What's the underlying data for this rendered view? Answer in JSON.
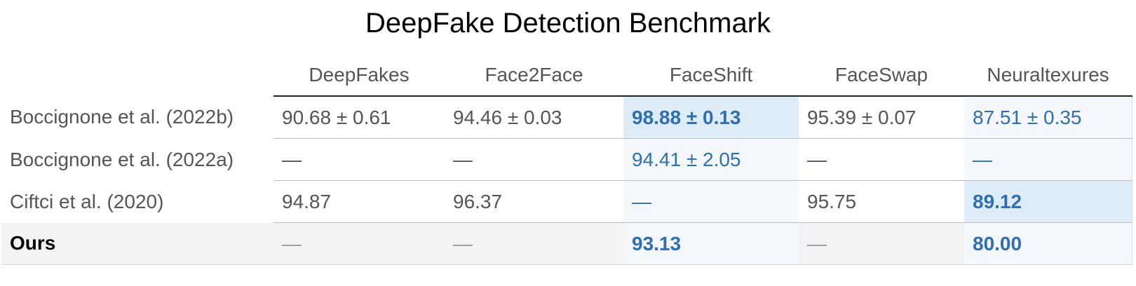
{
  "chart_data": {
    "type": "table",
    "title": "DeepFake Detection Benchmark",
    "columns": [
      "DeepFakes",
      "Face2Face",
      "FaceShift",
      "FaceSwap",
      "Neuraltexures"
    ],
    "rows": [
      {
        "label": "Boccignone et al. (2022b)",
        "cells": [
          "90.68 ± 0.61",
          "94.46 ± 0.03",
          "98.88 ± 0.13",
          "95.39 ± 0.07",
          "87.51 ± 0.35"
        ]
      },
      {
        "label": "Boccignone et al. (2022a)",
        "cells": [
          "—",
          "—",
          "94.41 ± 2.05",
          "—",
          "—"
        ]
      },
      {
        "label": "Ciftci et al. (2020)",
        "cells": [
          "94.87",
          "96.37",
          "—",
          "95.75",
          "89.12"
        ]
      },
      {
        "label": "Ours",
        "cells": [
          "—",
          "—",
          "93.13",
          "—",
          "80.00"
        ]
      }
    ],
    "highlight_color": "#2f6fb0",
    "best_background": "#deecf8",
    "column_background": "#f4f8fc"
  }
}
